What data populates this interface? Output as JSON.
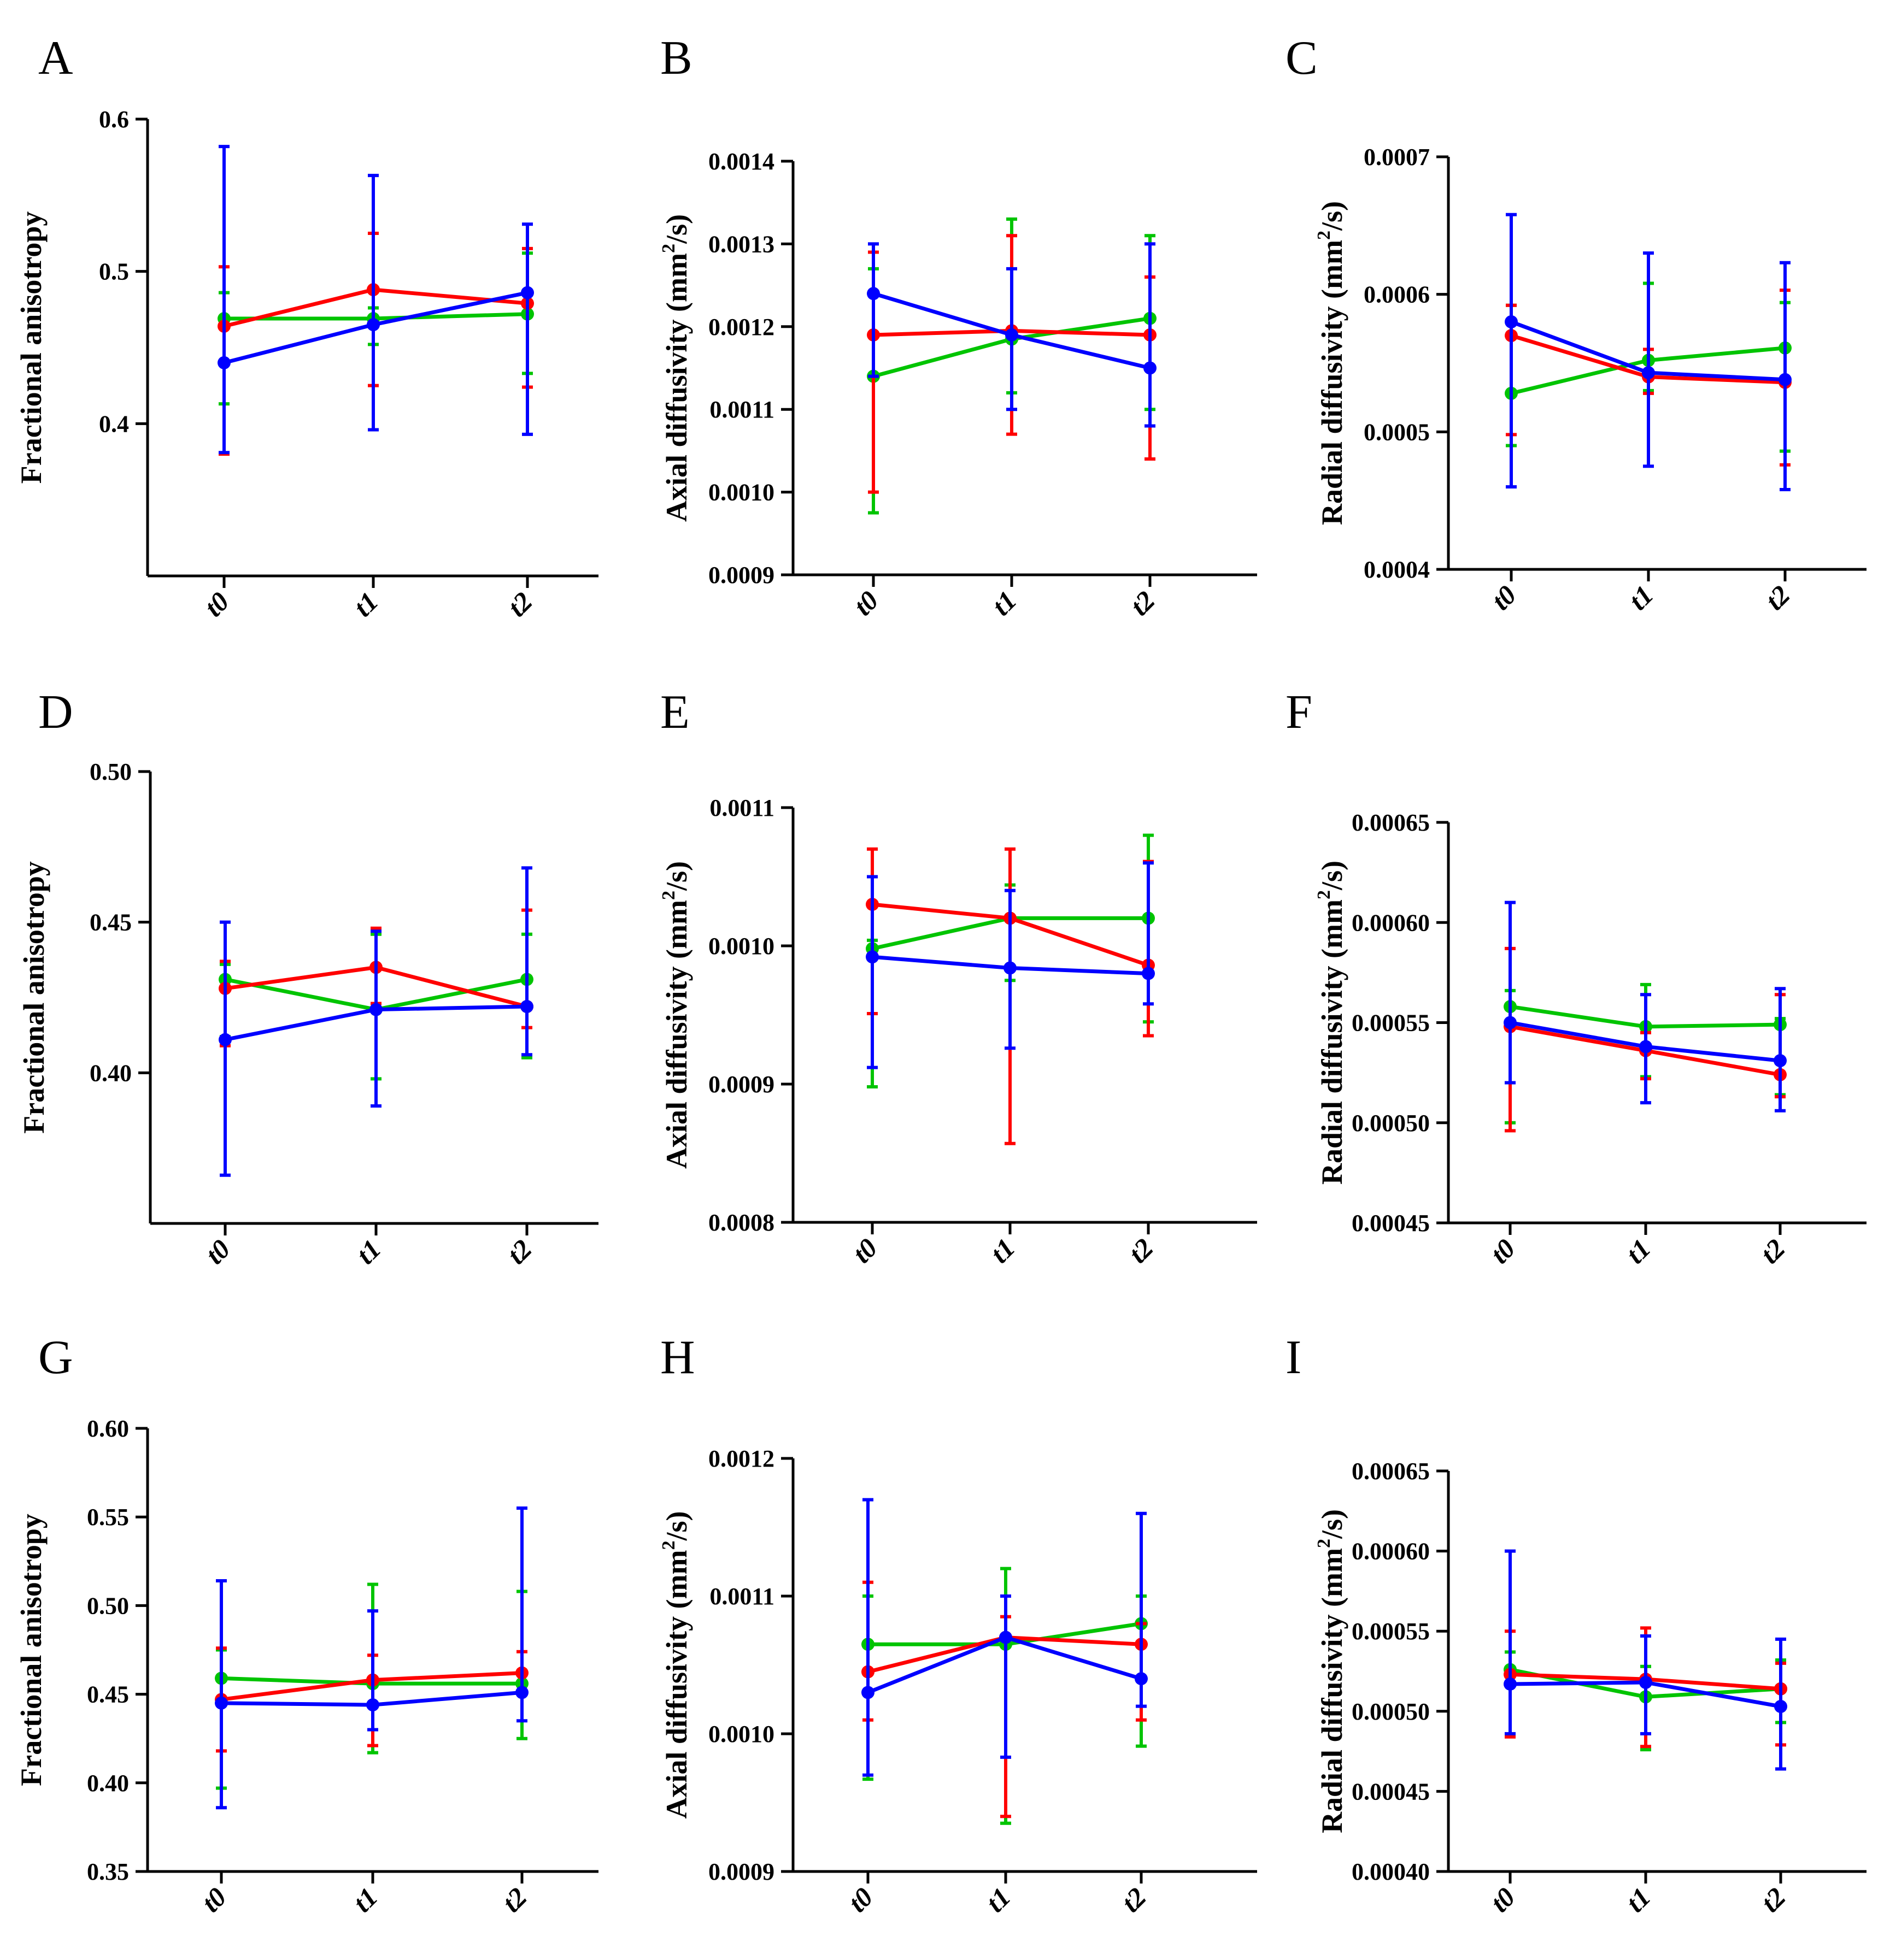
{
  "figure": {
    "panel_letters": [
      "A",
      "B",
      "C",
      "D",
      "E",
      "F",
      "G",
      "H",
      "I"
    ],
    "series_colors": {
      "red": "#FF0000",
      "green": "#00C400",
      "blue": "#0000FF"
    }
  },
  "chart_data": [
    {
      "id": "A",
      "type": "line",
      "title": "A",
      "ylabel": "Fractional anisotropy",
      "ylim": [
        0.3,
        0.6
      ],
      "yticks": [
        0.4,
        0.5,
        0.6
      ],
      "ytick_labels": [
        "0.4",
        "0.5",
        "0.6"
      ],
      "categories": [
        "t0",
        "t1",
        "t2"
      ],
      "series": [
        {
          "name": "green",
          "color": "#00C400",
          "values": [
            0.469,
            0.469,
            0.472
          ],
          "lower": [
            0.413,
            0.452,
            0.433
          ],
          "upper": [
            0.486,
            0.476,
            0.512
          ]
        },
        {
          "name": "red",
          "color": "#FF0000",
          "values": [
            0.464,
            0.488,
            0.479
          ],
          "lower": [
            0.38,
            0.425,
            0.424
          ],
          "upper": [
            0.503,
            0.525,
            0.515
          ]
        },
        {
          "name": "blue",
          "color": "#0000FF",
          "values": [
            0.44,
            0.465,
            0.486
          ],
          "lower": [
            0.381,
            0.396,
            0.393
          ],
          "upper": [
            0.582,
            0.563,
            0.531
          ]
        }
      ]
    },
    {
      "id": "B",
      "type": "line",
      "title": "B",
      "ylabel": "Axial diffusivity (mm",
      "ylabel_sup": "2",
      "ylabel_suffix": "/s)",
      "ylim": [
        0.0009,
        0.0014
      ],
      "yticks": [
        0.0009,
        0.001,
        0.0011,
        0.0012,
        0.0013,
        0.0014
      ],
      "ytick_labels": [
        "0.0009",
        "0.0010",
        "0.0011",
        "0.0012",
        "0.0013",
        "0.0014"
      ],
      "categories": [
        "t0",
        "t1",
        "t2"
      ],
      "series": [
        {
          "name": "green",
          "color": "#00C400",
          "values": [
            0.00114,
            0.001185,
            0.00121
          ],
          "lower": [
            0.000975,
            0.00112,
            0.0011
          ],
          "upper": [
            0.00127,
            0.00133,
            0.00131
          ]
        },
        {
          "name": "red",
          "color": "#FF0000",
          "values": [
            0.00119,
            0.001195,
            0.00119
          ],
          "lower": [
            0.001,
            0.00107,
            0.00104
          ],
          "upper": [
            0.00129,
            0.00131,
            0.00126
          ]
        },
        {
          "name": "blue",
          "color": "#0000FF",
          "values": [
            0.00124,
            0.00119,
            0.00115
          ],
          "lower": [
            0.00114,
            0.0011,
            0.00108
          ],
          "upper": [
            0.0013,
            0.00127,
            0.0013
          ]
        }
      ]
    },
    {
      "id": "C",
      "type": "line",
      "title": "C",
      "ylabel": "Radial diffusivity (mm",
      "ylabel_sup": "2",
      "ylabel_suffix": "/s)",
      "ylim": [
        0.0004,
        0.0007
      ],
      "yticks": [
        0.0004,
        0.0005,
        0.0006,
        0.0007
      ],
      "ytick_labels": [
        "0.0004",
        "0.0005",
        "0.0006",
        "0.0007"
      ],
      "categories": [
        "t0",
        "t1",
        "t2"
      ],
      "series": [
        {
          "name": "green",
          "color": "#00C400",
          "values": [
            0.000528,
            0.000552,
            0.000561
          ],
          "lower": [
            0.00049,
            0.00053,
            0.000486
          ],
          "upper": [
            0.000592,
            0.000608,
            0.000594
          ]
        },
        {
          "name": "red",
          "color": "#FF0000",
          "values": [
            0.00057,
            0.00054,
            0.000536
          ],
          "lower": [
            0.000498,
            0.000528,
            0.000476
          ],
          "upper": [
            0.000592,
            0.00056,
            0.000603
          ]
        },
        {
          "name": "blue",
          "color": "#0000FF",
          "values": [
            0.00058,
            0.000543,
            0.000538
          ],
          "lower": [
            0.00046,
            0.000475,
            0.000458
          ],
          "upper": [
            0.000658,
            0.00063,
            0.000623
          ]
        }
      ]
    },
    {
      "id": "D",
      "type": "line",
      "title": "D",
      "ylabel": "Fractional anisotropy",
      "ylim": [
        0.35,
        0.5
      ],
      "yticks": [
        0.4,
        0.45,
        0.5
      ],
      "ytick_labels": [
        "0.40",
        "0.45",
        "0.50"
      ],
      "categories": [
        "t0",
        "t1",
        "t2"
      ],
      "series": [
        {
          "name": "green",
          "color": "#00C400",
          "values": [
            0.431,
            0.421,
            0.431
          ],
          "lower": [
            0.412,
            0.398,
            0.405
          ],
          "upper": [
            0.436,
            0.446,
            0.446
          ]
        },
        {
          "name": "red",
          "color": "#FF0000",
          "values": [
            0.428,
            0.435,
            0.422
          ],
          "lower": [
            0.409,
            0.423,
            0.415
          ],
          "upper": [
            0.437,
            0.448,
            0.454
          ]
        },
        {
          "name": "blue",
          "color": "#0000FF",
          "values": [
            0.411,
            0.421,
            0.422
          ],
          "lower": [
            0.366,
            0.389,
            0.406
          ],
          "upper": [
            0.45,
            0.447,
            0.468
          ]
        }
      ]
    },
    {
      "id": "E",
      "type": "line",
      "title": "E",
      "ylabel": "Axial diffusivity (mm",
      "ylabel_sup": "2",
      "ylabel_suffix": "/s)",
      "ylim": [
        0.0008,
        0.0011
      ],
      "yticks": [
        0.0008,
        0.0009,
        0.001,
        0.0011
      ],
      "ytick_labels": [
        "0.0008",
        "0.0009",
        "0.0010",
        "0.0011"
      ],
      "categories": [
        "t0",
        "t1",
        "t2"
      ],
      "series": [
        {
          "name": "green",
          "color": "#00C400",
          "values": [
            0.000998,
            0.00102,
            0.00102
          ],
          "lower": [
            0.000898,
            0.000975,
            0.000945
          ],
          "upper": [
            0.001004,
            0.001044,
            0.00108
          ]
        },
        {
          "name": "red",
          "color": "#FF0000",
          "values": [
            0.00103,
            0.00102,
            0.000986
          ],
          "lower": [
            0.000951,
            0.000857,
            0.000935
          ],
          "upper": [
            0.00107,
            0.00107,
            0.001061
          ]
        },
        {
          "name": "blue",
          "color": "#0000FF",
          "values": [
            0.000992,
            0.000984,
            0.00098
          ],
          "lower": [
            0.000912,
            0.000926,
            0.000958
          ],
          "upper": [
            0.00105,
            0.00104,
            0.00106
          ]
        }
      ]
    },
    {
      "id": "F",
      "type": "line",
      "title": "F",
      "ylabel": "Radial diffusivity (mm",
      "ylabel_sup": "2",
      "ylabel_suffix": "/s)",
      "ylim": [
        0.00045,
        0.00065
      ],
      "yticks": [
        0.00045,
        0.0005,
        0.00055,
        0.0006,
        0.00065
      ],
      "ytick_labels": [
        "0.00045",
        "0.00050",
        "0.00055",
        "0.00060",
        "0.00065"
      ],
      "categories": [
        "t0",
        "t1",
        "t2"
      ],
      "series": [
        {
          "name": "green",
          "color": "#00C400",
          "values": [
            0.000558,
            0.000548,
            0.000549
          ],
          "lower": [
            0.0005,
            0.000523,
            0.000514
          ],
          "upper": [
            0.000566,
            0.000569,
            0.000552
          ]
        },
        {
          "name": "red",
          "color": "#FF0000",
          "values": [
            0.000548,
            0.000536,
            0.000524
          ],
          "lower": [
            0.000496,
            0.000522,
            0.000513
          ],
          "upper": [
            0.000587,
            0.000545,
            0.000564
          ]
        },
        {
          "name": "blue",
          "color": "#0000FF",
          "values": [
            0.00055,
            0.000538,
            0.000531
          ],
          "lower": [
            0.00052,
            0.00051,
            0.000506
          ],
          "upper": [
            0.00061,
            0.000564,
            0.000567
          ]
        }
      ]
    },
    {
      "id": "G",
      "type": "line",
      "title": "G",
      "ylabel": "Fractional anisotropy",
      "ylim": [
        0.35,
        0.6
      ],
      "yticks": [
        0.35,
        0.4,
        0.45,
        0.5,
        0.55,
        0.6
      ],
      "ytick_labels": [
        "0.35",
        "0.40",
        "0.45",
        "0.50",
        "0.55",
        "0.60"
      ],
      "categories": [
        "t0",
        "t1",
        "t2"
      ],
      "series": [
        {
          "name": "green",
          "color": "#00C400",
          "values": [
            0.459,
            0.456,
            0.456
          ],
          "lower": [
            0.397,
            0.417,
            0.425
          ],
          "upper": [
            0.475,
            0.512,
            0.508
          ]
        },
        {
          "name": "red",
          "color": "#FF0000",
          "values": [
            0.447,
            0.458,
            0.462
          ],
          "lower": [
            0.418,
            0.421,
            0.45
          ],
          "upper": [
            0.476,
            0.472,
            0.474
          ]
        },
        {
          "name": "blue",
          "color": "#0000FF",
          "values": [
            0.445,
            0.444,
            0.451
          ],
          "lower": [
            0.386,
            0.43,
            0.435
          ],
          "upper": [
            0.514,
            0.497,
            0.555
          ]
        }
      ]
    },
    {
      "id": "H",
      "type": "line",
      "title": "H",
      "ylabel": "Axial diffusivity (mm",
      "ylabel_sup": "2",
      "ylabel_suffix": "/s)",
      "ylim": [
        0.0009,
        0.0012
      ],
      "yticks": [
        0.0009,
        0.001,
        0.0011,
        0.0012
      ],
      "ytick_labels": [
        "0.0009",
        "0.0010",
        "0.0011",
        "0.0012"
      ],
      "categories": [
        "t0",
        "t1",
        "t2"
      ],
      "series": [
        {
          "name": "green",
          "color": "#00C400",
          "values": [
            0.001065,
            0.001065,
            0.00108
          ],
          "lower": [
            0.000967,
            0.000935,
            0.000991
          ],
          "upper": [
            0.0011,
            0.00112,
            0.0011
          ]
        },
        {
          "name": "red",
          "color": "#FF0000",
          "values": [
            0.001045,
            0.00107,
            0.001065
          ],
          "lower": [
            0.00101,
            0.00094,
            0.00101
          ],
          "upper": [
            0.00111,
            0.001085,
            0.00108
          ]
        },
        {
          "name": "blue",
          "color": "#0000FF",
          "values": [
            0.00103,
            0.00107,
            0.00104
          ],
          "lower": [
            0.00097,
            0.000983,
            0.00102
          ],
          "upper": [
            0.00117,
            0.0011,
            0.00116
          ]
        }
      ]
    },
    {
      "id": "I",
      "type": "line",
      "title": "I",
      "ylabel": "Radial diffusivity (mm",
      "ylabel_sup": "2",
      "ylabel_suffix": "/s)",
      "ylim": [
        0.0004,
        0.00065
      ],
      "yticks": [
        0.0004,
        0.00045,
        0.0005,
        0.00055,
        0.0006,
        0.00065
      ],
      "ytick_labels": [
        "0.00040",
        "0.00045",
        "0.00050",
        "0.00055",
        "0.00060",
        "0.00065"
      ],
      "categories": [
        "t0",
        "t1",
        "t2"
      ],
      "series": [
        {
          "name": "green",
          "color": "#00C400",
          "values": [
            0.000526,
            0.000509,
            0.000514
          ],
          "lower": [
            0.000485,
            0.000476,
            0.000493
          ],
          "upper": [
            0.000537,
            0.000528,
            0.000532
          ]
        },
        {
          "name": "red",
          "color": "#FF0000",
          "values": [
            0.000523,
            0.00052,
            0.000514
          ],
          "lower": [
            0.000484,
            0.000478,
            0.000479
          ],
          "upper": [
            0.00055,
            0.000552,
            0.00053
          ]
        },
        {
          "name": "blue",
          "color": "#0000FF",
          "values": [
            0.000517,
            0.000518,
            0.000503
          ],
          "lower": [
            0.000486,
            0.000486,
            0.000464
          ],
          "upper": [
            0.0006,
            0.000547,
            0.000545
          ]
        }
      ]
    }
  ]
}
